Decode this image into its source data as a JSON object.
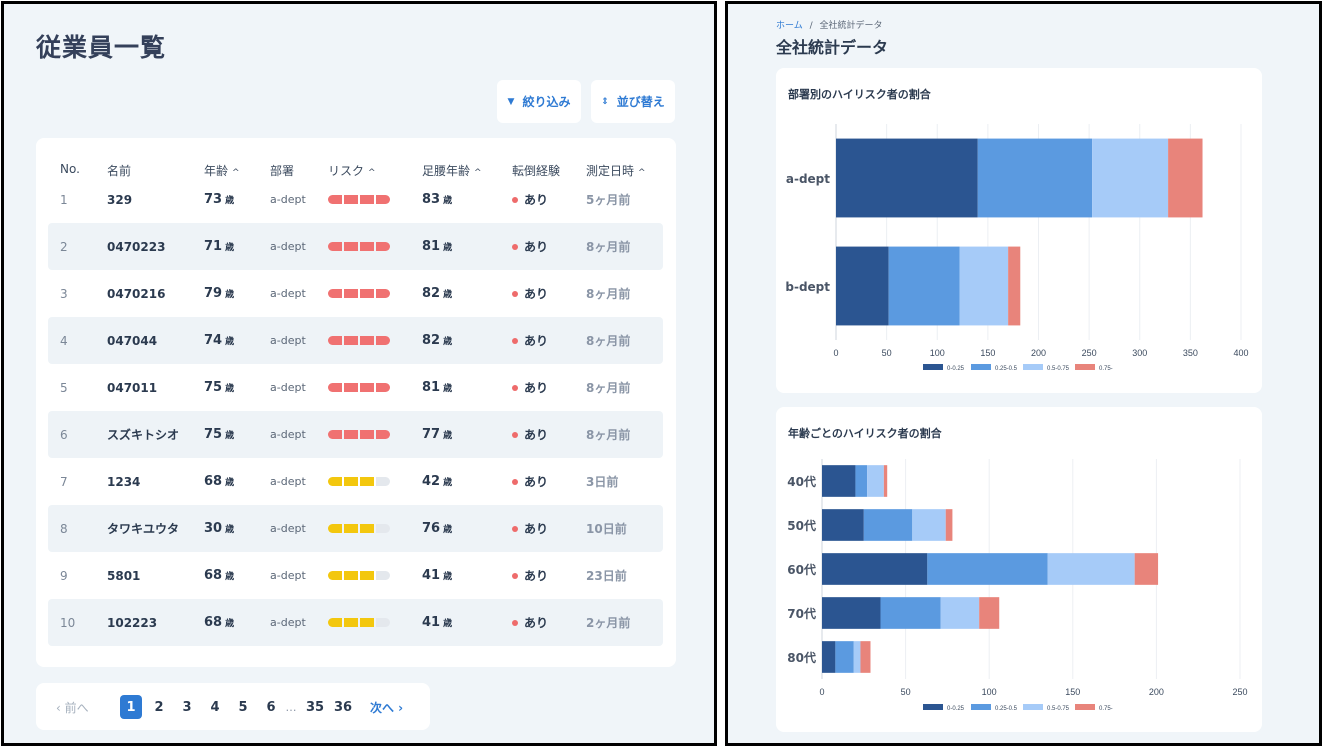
{
  "employees": {
    "title": "従業員一覧",
    "toolbar": {
      "filter_label": "絞り込み",
      "sort_label": "並び替え"
    },
    "columns": [
      {
        "label": "No.",
        "sortable": false
      },
      {
        "label": "名前",
        "sortable": false
      },
      {
        "label": "年齢",
        "sortable": true
      },
      {
        "label": "部署",
        "sortable": false
      },
      {
        "label": "リスク",
        "sortable": true
      },
      {
        "label": "足腰年齢",
        "sortable": true
      },
      {
        "label": "転倒経験",
        "sortable": false
      },
      {
        "label": "測定日時",
        "sortable": true
      }
    ],
    "caret": "^",
    "age_unit": "歳",
    "rows": [
      {
        "no": "1",
        "name": "329",
        "age": "73",
        "dept": "a-dept",
        "risk_level": 4,
        "risk_color": "#f07171",
        "foot_age": "83",
        "fall": "あり",
        "measured": "5ヶ月前"
      },
      {
        "no": "2",
        "name": "0470223",
        "age": "71",
        "dept": "a-dept",
        "risk_level": 4,
        "risk_color": "#f07171",
        "foot_age": "81",
        "fall": "あり",
        "measured": "8ヶ月前"
      },
      {
        "no": "3",
        "name": "0470216",
        "age": "79",
        "dept": "a-dept",
        "risk_level": 4,
        "risk_color": "#f07171",
        "foot_age": "82",
        "fall": "あり",
        "measured": "8ヶ月前"
      },
      {
        "no": "4",
        "name": "047044",
        "age": "74",
        "dept": "a-dept",
        "risk_level": 4,
        "risk_color": "#f07171",
        "foot_age": "82",
        "fall": "あり",
        "measured": "8ヶ月前"
      },
      {
        "no": "5",
        "name": "047011",
        "age": "75",
        "dept": "a-dept",
        "risk_level": 4,
        "risk_color": "#f07171",
        "foot_age": "81",
        "fall": "あり",
        "measured": "8ヶ月前"
      },
      {
        "no": "6",
        "name": "スズキトシオ",
        "age": "75",
        "dept": "a-dept",
        "risk_level": 4,
        "risk_color": "#f07171",
        "foot_age": "77",
        "fall": "あり",
        "measured": "8ヶ月前"
      },
      {
        "no": "7",
        "name": "1234",
        "age": "68",
        "dept": "a-dept",
        "risk_level": 3,
        "risk_color": "#f3c70e",
        "foot_age": "42",
        "fall": "あり",
        "measured": "3日前"
      },
      {
        "no": "8",
        "name": "タワキユウタ",
        "age": "30",
        "dept": "a-dept",
        "risk_level": 3,
        "risk_color": "#f3c70e",
        "foot_age": "76",
        "fall": "あり",
        "measured": "10日前"
      },
      {
        "no": "9",
        "name": "5801",
        "age": "68",
        "dept": "a-dept",
        "risk_level": 3,
        "risk_color": "#f3c70e",
        "foot_age": "41",
        "fall": "あり",
        "measured": "23日前"
      },
      {
        "no": "10",
        "name": "102223",
        "age": "68",
        "dept": "a-dept",
        "risk_level": 3,
        "risk_color": "#f3c70e",
        "foot_age": "41",
        "fall": "あり",
        "measured": "2ヶ月前"
      }
    ],
    "pagination": {
      "prev_label": "‹ 前へ",
      "next_label": "次へ ›",
      "pages": [
        "1",
        "2",
        "3",
        "4",
        "5",
        "6",
        "…",
        "35",
        "36"
      ],
      "current": "1"
    }
  },
  "stats": {
    "breadcrumb": {
      "home": "ホーム",
      "sep": "/",
      "current": "全社統計データ"
    },
    "title": "全社統計データ",
    "legend_colors": [
      "#2b5591",
      "#5b9ae0",
      "#a6cbf8",
      "#e8847b"
    ]
  },
  "chart_data": [
    {
      "type": "bar",
      "orientation": "horizontal",
      "stacked": true,
      "title": "部署別のハイリスク者の割合",
      "categories": [
        "a-dept",
        "b-dept"
      ],
      "series": [
        {
          "name": "0-0.25",
          "values": [
            140,
            52
          ]
        },
        {
          "name": "0.25-0.5",
          "values": [
            113,
            70
          ]
        },
        {
          "name": "0.5-0.75",
          "values": [
            75,
            48
          ]
        },
        {
          "name": "0.75-",
          "values": [
            34,
            12
          ]
        }
      ],
      "xlim": [
        0,
        400
      ],
      "xticks": [
        0,
        50,
        100,
        150,
        200,
        250,
        300,
        350,
        400
      ],
      "grid": true,
      "legend": "bottom"
    },
    {
      "type": "bar",
      "orientation": "horizontal",
      "stacked": true,
      "title": "年齢ごとのハイリスク者の割合",
      "categories": [
        "40代",
        "50代",
        "60代",
        "70代",
        "80代"
      ],
      "series": [
        {
          "name": "0-0.25",
          "values": [
            20,
            25,
            63,
            35,
            8
          ]
        },
        {
          "name": "0.25-0.5",
          "values": [
            7,
            29,
            72,
            36,
            11
          ]
        },
        {
          "name": "0.5-0.75",
          "values": [
            10,
            20,
            52,
            23,
            4
          ]
        },
        {
          "name": "0.75-",
          "values": [
            2,
            4,
            14,
            12,
            6
          ]
        }
      ],
      "xlim": [
        0,
        250
      ],
      "xticks": [
        0,
        50,
        100,
        150,
        200,
        250
      ],
      "grid": true,
      "legend": "bottom"
    }
  ]
}
